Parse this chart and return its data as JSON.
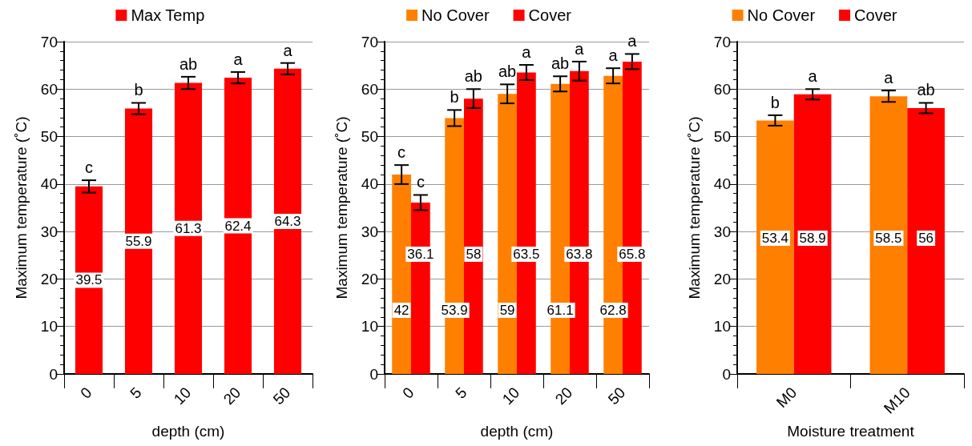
{
  "chart_data": [
    {
      "type": "bar",
      "xlabel": "depth (cm)",
      "ylabel": "Maximum temperature (˚C)",
      "categories": [
        "0",
        "5",
        "10",
        "20",
        "50"
      ],
      "series": [
        {
          "name": "Max Temp",
          "color": "#ff0000",
          "values": [
            39.5,
            55.9,
            61.3,
            62.4,
            64.3
          ],
          "errors": [
            1.3,
            1.2,
            1.3,
            1.2,
            1.2
          ]
        }
      ],
      "ylim": [
        0,
        70
      ],
      "yticks": [
        0,
        10,
        20,
        30,
        40,
        50,
        60,
        70
      ],
      "grid": "y",
      "legend": "top",
      "data_labels": true,
      "annotations": [
        "c",
        "b",
        "ab",
        "a",
        "a"
      ]
    },
    {
      "type": "bar",
      "xlabel": "depth (cm)",
      "ylabel": "Maximum temperature (˚C)",
      "categories": [
        "0",
        "5",
        "10",
        "20",
        "50"
      ],
      "series": [
        {
          "name": "No Cover",
          "color": "#ff8000",
          "values": [
            42,
            53.9,
            59,
            61.1,
            62.8
          ],
          "errors": [
            2,
            1.7,
            2,
            1.6,
            1.6
          ]
        },
        {
          "name": "Cover",
          "color": "#ff0000",
          "values": [
            36.1,
            58,
            63.5,
            63.8,
            65.8
          ],
          "errors": [
            1.6,
            2,
            1.6,
            2,
            1.6
          ]
        }
      ],
      "ylim": [
        0,
        70
      ],
      "yticks": [
        0,
        10,
        20,
        30,
        40,
        50,
        60,
        70
      ],
      "grid": "y",
      "legend": "top",
      "data_labels": true,
      "annotations": [
        "c",
        "b",
        "ab",
        "ab",
        "a",
        "c",
        "ab",
        "a",
        "a",
        "a"
      ]
    },
    {
      "type": "bar",
      "xlabel": "Moisture treatment",
      "ylabel": "Maximum temperature (˚C)",
      "categories": [
        "M0",
        "M10"
      ],
      "series": [
        {
          "name": "No Cover",
          "color": "#ff8000",
          "values": [
            53.4,
            58.5
          ],
          "errors": [
            1.1,
            1.2
          ]
        },
        {
          "name": "Cover",
          "color": "#ff0000",
          "values": [
            58.9,
            56
          ],
          "errors": [
            1.1,
            1.1
          ]
        }
      ],
      "ylim": [
        0,
        70
      ],
      "yticks": [
        0,
        10,
        20,
        30,
        40,
        50,
        60,
        70
      ],
      "grid": "y",
      "legend": "top",
      "data_labels": true,
      "annotations": [
        "b",
        "a",
        "a",
        "ab"
      ]
    }
  ]
}
